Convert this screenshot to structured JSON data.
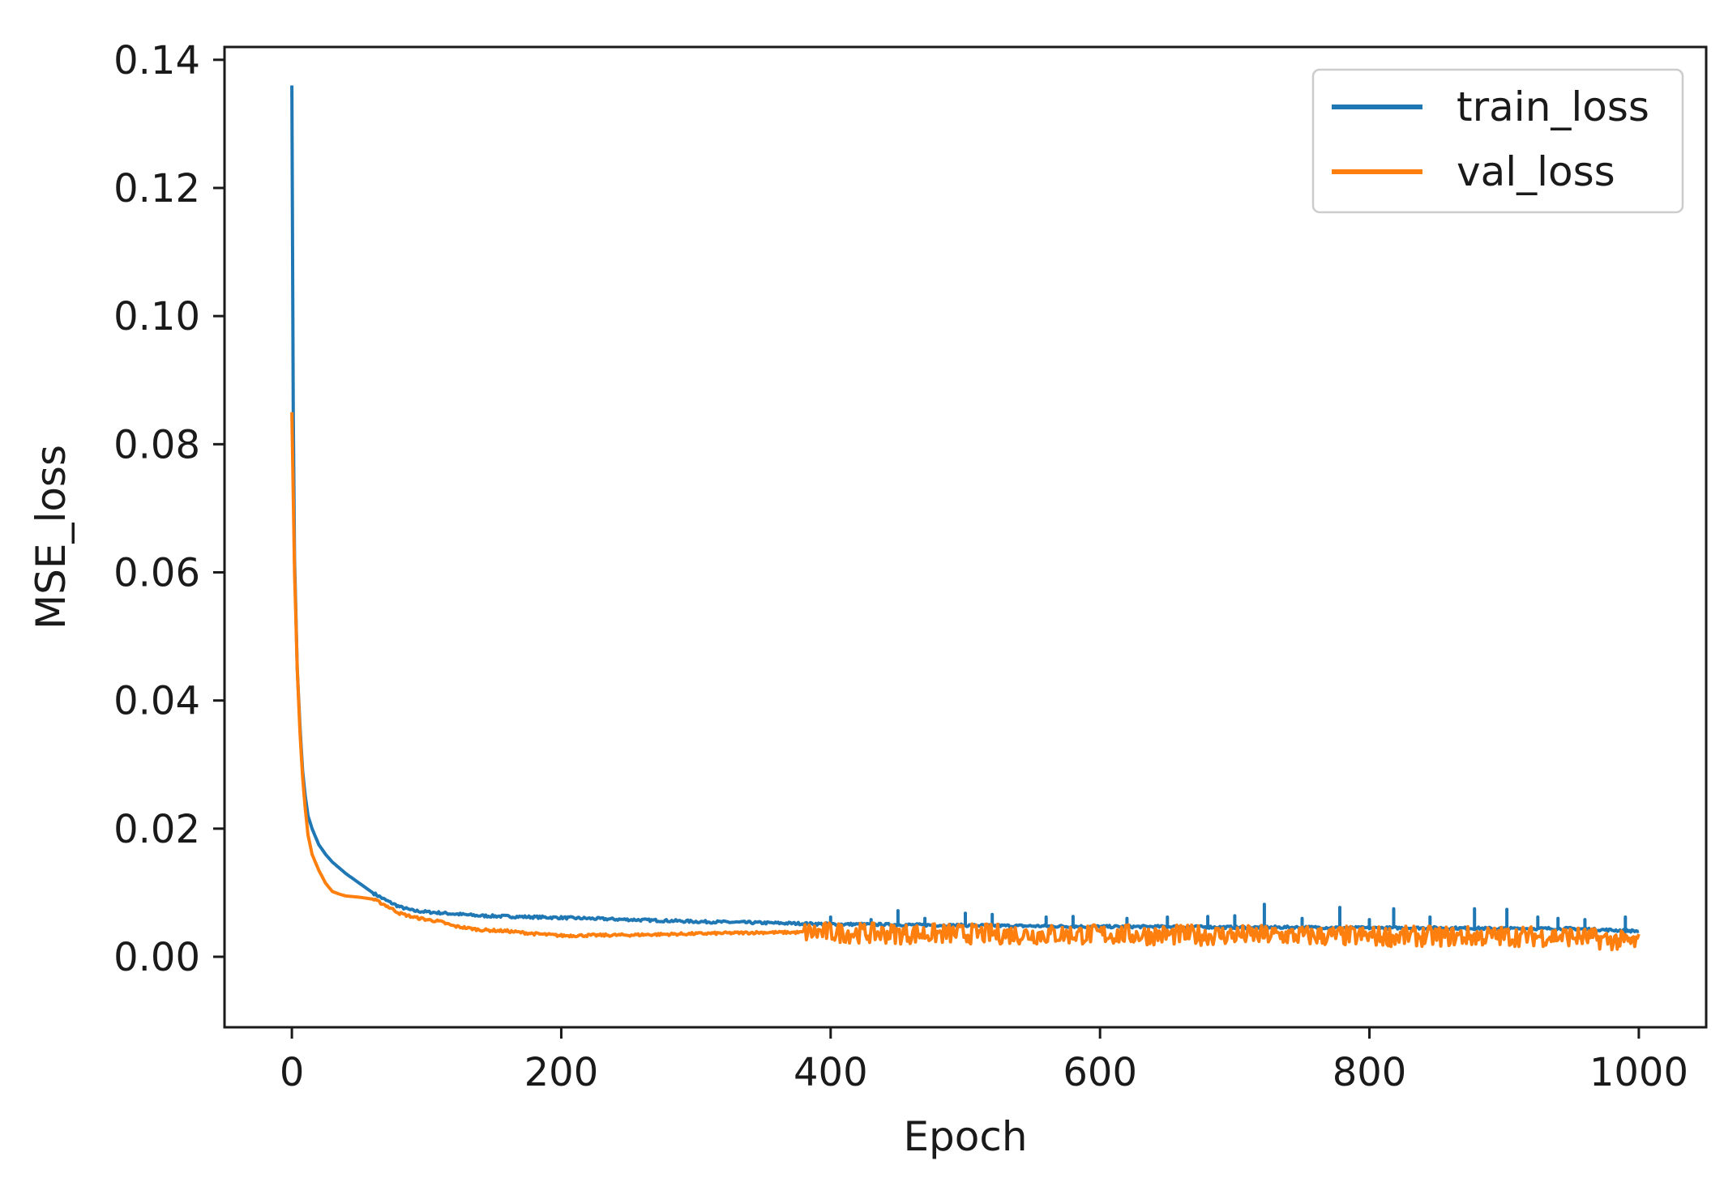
{
  "chart_data": {
    "type": "line",
    "title": "",
    "xlabel": "Epoch",
    "ylabel": "MSE_loss",
    "xlim": [
      -50,
      1050
    ],
    "ylim": [
      -0.011,
      0.142
    ],
    "x_ticks": [
      0,
      200,
      400,
      600,
      800,
      1000
    ],
    "x_tick_labels": [
      "0",
      "200",
      "400",
      "600",
      "800",
      "1000"
    ],
    "y_ticks": [
      0.0,
      0.02,
      0.04,
      0.06,
      0.08,
      0.1,
      0.12,
      0.14
    ],
    "y_tick_labels": [
      "0.00",
      "0.02",
      "0.04",
      "0.06",
      "0.08",
      "0.10",
      "0.12",
      "0.14"
    ],
    "grid": false,
    "legend_position": "top-right",
    "series": [
      {
        "name": "train_loss",
        "color": "#1f77b4",
        "x": [
          0,
          1,
          2,
          4,
          6,
          8,
          10,
          12,
          15,
          20,
          25,
          30,
          40,
          50,
          60,
          70,
          80,
          90,
          100,
          120,
          140,
          160,
          180,
          200,
          250,
          300,
          350,
          400,
          450,
          500,
          550,
          600,
          650,
          700,
          750,
          800,
          850,
          900,
          950,
          1000
        ],
        "y": [
          0.136,
          0.085,
          0.062,
          0.045,
          0.036,
          0.029,
          0.025,
          0.022,
          0.02,
          0.0175,
          0.016,
          0.0148,
          0.013,
          0.0115,
          0.01,
          0.0088,
          0.0078,
          0.0072,
          0.007,
          0.0067,
          0.0064,
          0.0063,
          0.0062,
          0.0061,
          0.0058,
          0.0055,
          0.0053,
          0.0051,
          0.005,
          0.0049,
          0.0048,
          0.0047,
          0.0047,
          0.0046,
          0.0046,
          0.0045,
          0.0045,
          0.0044,
          0.0044,
          0.004
        ],
        "spikes": [
          {
            "x": 400,
            "y": 0.0062
          },
          {
            "x": 430,
            "y": 0.0058
          },
          {
            "x": 450,
            "y": 0.0072
          },
          {
            "x": 470,
            "y": 0.006
          },
          {
            "x": 500,
            "y": 0.0068
          },
          {
            "x": 520,
            "y": 0.0066
          },
          {
            "x": 560,
            "y": 0.0062
          },
          {
            "x": 580,
            "y": 0.0063
          },
          {
            "x": 620,
            "y": 0.006
          },
          {
            "x": 650,
            "y": 0.0062
          },
          {
            "x": 680,
            "y": 0.0063
          },
          {
            "x": 700,
            "y": 0.0064
          },
          {
            "x": 722,
            "y": 0.0082
          },
          {
            "x": 750,
            "y": 0.006
          },
          {
            "x": 778,
            "y": 0.0077
          },
          {
            "x": 800,
            "y": 0.0058
          },
          {
            "x": 818,
            "y": 0.0075
          },
          {
            "x": 845,
            "y": 0.0062
          },
          {
            "x": 878,
            "y": 0.0075
          },
          {
            "x": 902,
            "y": 0.0074
          },
          {
            "x": 925,
            "y": 0.0062
          },
          {
            "x": 940,
            "y": 0.006
          },
          {
            "x": 960,
            "y": 0.0058
          },
          {
            "x": 990,
            "y": 0.0062
          }
        ]
      },
      {
        "name": "val_loss",
        "color": "#ff7f0e",
        "x": [
          0,
          1,
          2,
          4,
          6,
          8,
          10,
          12,
          15,
          20,
          25,
          30,
          35,
          40,
          50,
          60,
          70,
          80,
          90,
          100,
          110,
          120,
          140,
          160,
          180,
          200,
          250,
          300,
          350,
          400,
          450,
          500,
          550,
          600,
          650,
          700,
          750,
          800,
          850,
          900,
          950,
          1000
        ],
        "y": [
          0.085,
          0.072,
          0.06,
          0.045,
          0.035,
          0.028,
          0.023,
          0.019,
          0.016,
          0.0135,
          0.0115,
          0.0102,
          0.0098,
          0.0095,
          0.0093,
          0.009,
          0.008,
          0.0068,
          0.0062,
          0.0058,
          0.0055,
          0.0048,
          0.0042,
          0.004,
          0.0036,
          0.0033,
          0.0034,
          0.0036,
          0.0038,
          0.0038,
          0.0036,
          0.0036,
          0.0035,
          0.0035,
          0.0034,
          0.0034,
          0.0033,
          0.0032,
          0.0032,
          0.0032,
          0.0032,
          0.0022
        ],
        "noise_band_from_epoch": 380,
        "noise_amplitude": 0.0016
      }
    ]
  }
}
